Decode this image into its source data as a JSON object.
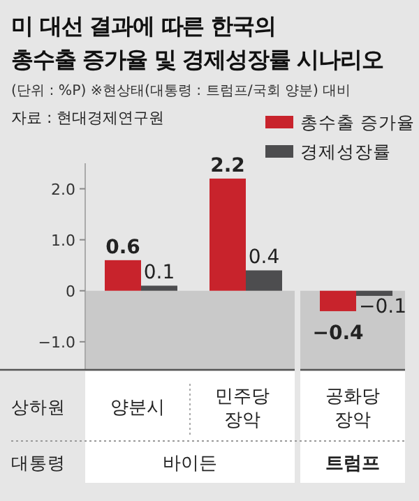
{
  "chart_data": {
    "type": "bar",
    "title": "미 대선 결과에 따른 한국의 총수출 증가율 및 경제성장률 시나리오",
    "subtitle": "(단위 : %P) ※현상태(대통령 : 트럼프/국회 양분) 대비",
    "categories": [
      "양분시",
      "민주당 장악",
      "공화당 장악"
    ],
    "series": [
      {
        "name": "총수출 증가율",
        "color": "#c8232c",
        "values": [
          0.6,
          2.2,
          -0.4
        ]
      },
      {
        "name": "경제성장률",
        "color": "#4d4d4f",
        "values": [
          0.1,
          0.4,
          -0.1
        ]
      }
    ],
    "ylim": [
      -1.55,
      2.5
    ],
    "yticks": [
      {
        "value": -1,
        "label": "−1.0"
      },
      0,
      {
        "value": 1,
        "label": "1.0"
      },
      {
        "value": 2,
        "label": "2.0"
      }
    ],
    "bands": [
      {
        "axis": "y",
        "from": -1.55,
        "to": 0,
        "color": "#c9c9c9"
      }
    ],
    "data_labels": true,
    "legend": "top right",
    "grid": false,
    "annotations": [
      "자료 : 현대경제연구원",
      "상하원",
      "대통령",
      "바이든",
      "트럼프"
    ]
  }
}
